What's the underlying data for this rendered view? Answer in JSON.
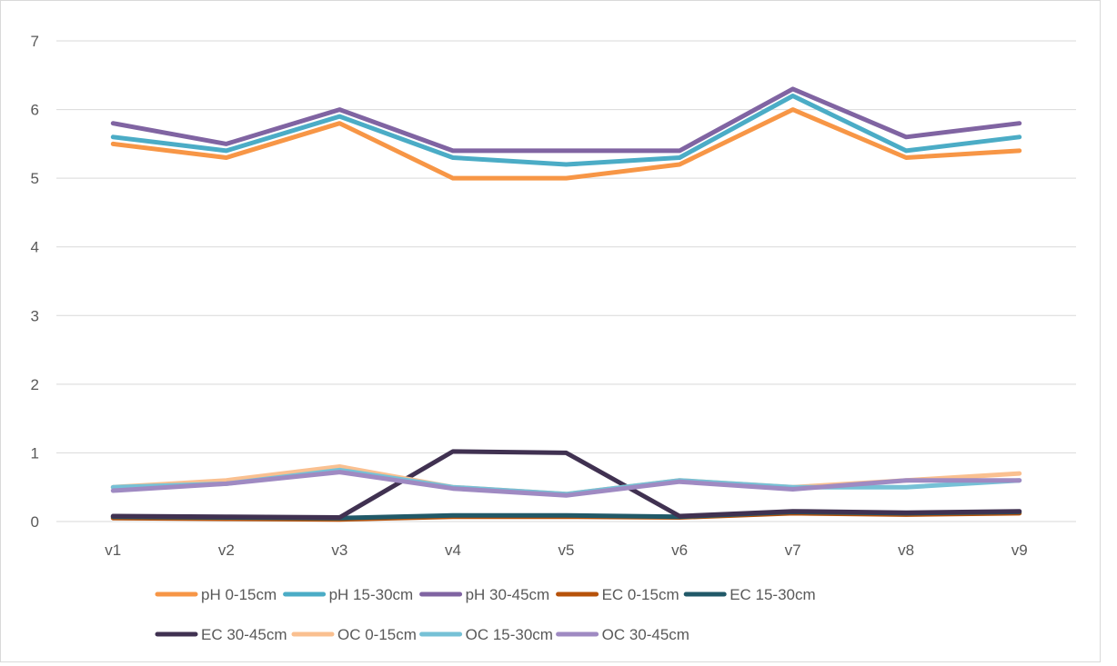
{
  "chart_data": {
    "type": "line",
    "title": "",
    "xlabel": "",
    "ylabel": "",
    "categories": [
      "v1",
      "v2",
      "v3",
      "v4",
      "v5",
      "v6",
      "v7",
      "v8",
      "v9"
    ],
    "ylim": [
      0,
      7
    ],
    "yticks": [
      "0",
      "1",
      "2",
      "3",
      "4",
      "5",
      "6",
      "7"
    ],
    "grid": true,
    "legend_position": "bottom",
    "series": [
      {
        "name": "pH 0-15cm",
        "color": "#F79646",
        "values": [
          5.5,
          5.3,
          5.8,
          5.0,
          5.0,
          5.2,
          6.0,
          5.3,
          5.4
        ]
      },
      {
        "name": "pH 15-30cm",
        "color": "#4BACC6",
        "values": [
          5.6,
          5.4,
          5.9,
          5.3,
          5.2,
          5.3,
          6.2,
          5.4,
          5.6
        ]
      },
      {
        "name": "pH 30-45cm",
        "color": "#8064A2",
        "values": [
          5.8,
          5.5,
          6.0,
          5.4,
          5.4,
          5.4,
          6.3,
          5.6,
          5.8
        ]
      },
      {
        "name": "EC 0-15cm",
        "color": "#B7520A",
        "values": [
          0.05,
          0.04,
          0.03,
          0.07,
          0.07,
          0.06,
          0.12,
          0.1,
          0.12
        ]
      },
      {
        "name": "EC 15-30cm",
        "color": "#215968",
        "values": [
          0.07,
          0.06,
          0.05,
          0.09,
          0.09,
          0.07,
          0.14,
          0.12,
          0.14
        ]
      },
      {
        "name": "EC 30-45cm",
        "color": "#403151",
        "values": [
          0.08,
          0.07,
          0.06,
          1.02,
          1.0,
          0.08,
          0.15,
          0.13,
          0.15
        ]
      },
      {
        "name": "OC 0-15cm",
        "color": "#FAC090",
        "values": [
          0.5,
          0.6,
          0.8,
          0.5,
          0.4,
          0.6,
          0.5,
          0.6,
          0.7
        ]
      },
      {
        "name": "OC 15-30cm",
        "color": "#76C1D6",
        "values": [
          0.5,
          0.55,
          0.75,
          0.5,
          0.4,
          0.6,
          0.5,
          0.5,
          0.6
        ]
      },
      {
        "name": "OC 30-45cm",
        "color": "#9F8AC2",
        "values": [
          0.45,
          0.55,
          0.72,
          0.48,
          0.38,
          0.58,
          0.47,
          0.6,
          0.6
        ]
      }
    ]
  }
}
